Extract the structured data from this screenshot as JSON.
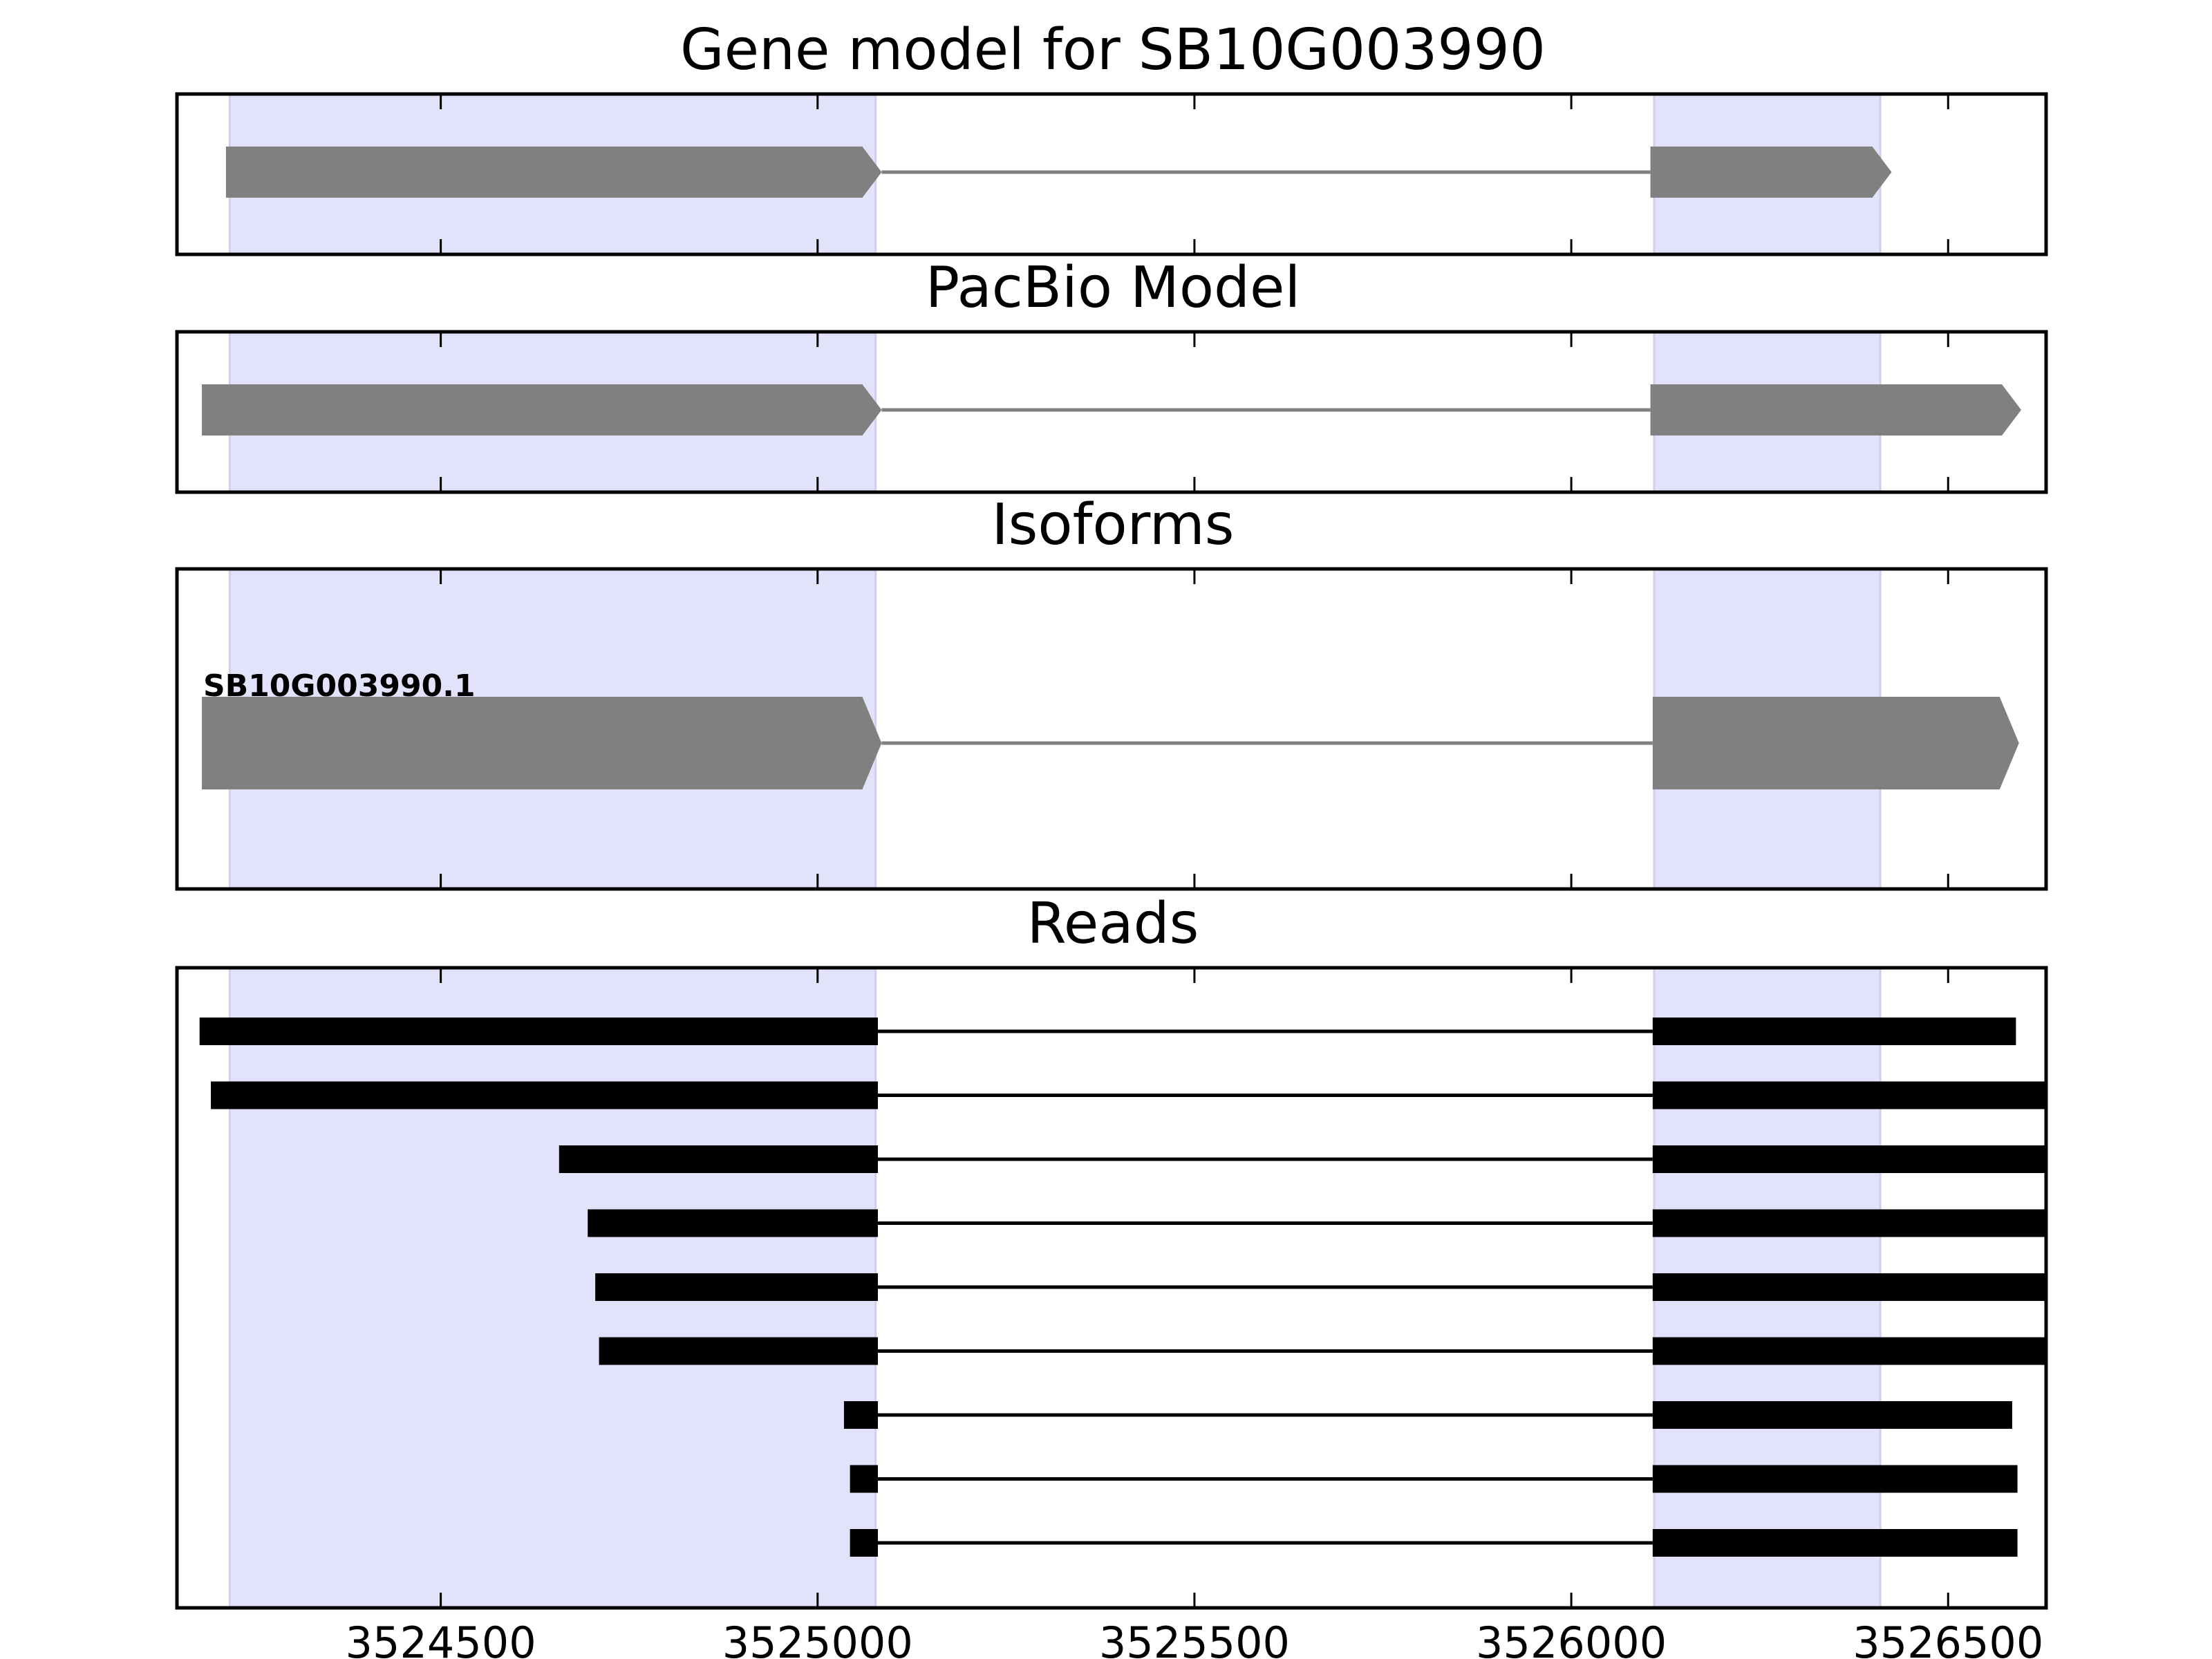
{
  "chart_data": {
    "type": "gene_model",
    "x_range": [
      3524150,
      3526630
    ],
    "x_ticks": [
      3524500,
      3525000,
      3525500,
      3526000,
      3526500
    ],
    "x_tick_labels": [
      "3524500",
      "3525000",
      "3525500",
      "3526000",
      "3526500"
    ],
    "highlight_regions": [
      [
        3524220,
        3525077
      ],
      [
        3526110,
        3526410
      ]
    ],
    "colors": {
      "highlight": "#e2e2fb",
      "highlight_edge": "#cfcfee",
      "feature": "#808080",
      "read": "#000000",
      "frame": "#000000"
    },
    "panels": [
      {
        "id": "gene-model",
        "title": "Gene model for SB10G003990",
        "strand": "+",
        "exons": [
          [
            3524215,
            3525085
          ],
          [
            3526105,
            3526425
          ]
        ]
      },
      {
        "id": "pacbio-model",
        "title": "PacBio Model",
        "strand": "+",
        "exons": [
          [
            3524183,
            3525085
          ],
          [
            3526105,
            3526597
          ]
        ]
      },
      {
        "id": "isoforms",
        "title": "Isoforms",
        "isoforms": [
          {
            "label": "SB10G003990.1",
            "strand": "+",
            "exons": [
              [
                3524183,
                3525085
              ],
              [
                3526108,
                3526594
              ]
            ]
          }
        ]
      },
      {
        "id": "reads",
        "title": "Reads",
        "reads": [
          [
            [
              3524180,
              3525080
            ],
            [
              3526108,
              3526590
            ]
          ],
          [
            [
              3524195,
              3525080
            ],
            [
              3526108,
              3526630
            ]
          ],
          [
            [
              3524657,
              3525080
            ],
            [
              3526108,
              3526630
            ]
          ],
          [
            [
              3524695,
              3525080
            ],
            [
              3526108,
              3526630
            ]
          ],
          [
            [
              3524705,
              3525080
            ],
            [
              3526108,
              3526630
            ]
          ],
          [
            [
              3524710,
              3525080
            ],
            [
              3526108,
              3526630
            ]
          ],
          [
            [
              3525035,
              3525080
            ],
            [
              3526108,
              3526585
            ]
          ],
          [
            [
              3525043,
              3525080
            ],
            [
              3526108,
              3526592
            ]
          ],
          [
            [
              3525043,
              3525080
            ],
            [
              3526108,
              3526592
            ]
          ]
        ]
      }
    ]
  }
}
